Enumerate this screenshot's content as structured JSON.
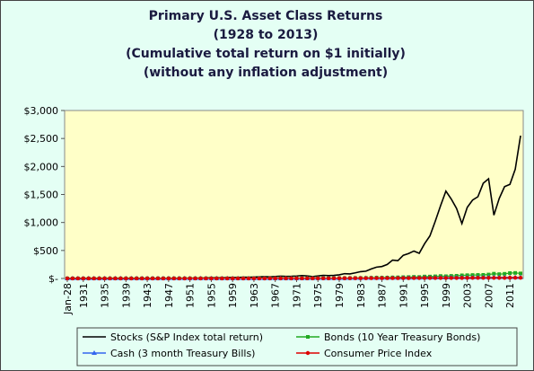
{
  "chart_data": {
    "type": "line",
    "title": [
      "Primary U.S. Asset Class Returns",
      "(1928 to 2013)",
      "(Cumulative total return on $1 initially)",
      "(without any inflation adjustment)"
    ],
    "categories": [
      "Jan-28",
      null,
      null,
      "1931",
      null,
      null,
      null,
      "1935",
      null,
      null,
      null,
      "1939",
      null,
      null,
      null,
      "1943",
      null,
      null,
      null,
      "1947",
      null,
      null,
      null,
      "1951",
      null,
      null,
      null,
      "1955",
      null,
      null,
      null,
      "1959",
      null,
      null,
      null,
      "1963",
      null,
      null,
      null,
      "1967",
      null,
      null,
      null,
      "1971",
      null,
      null,
      null,
      "1975",
      null,
      null,
      null,
      "1979",
      null,
      null,
      null,
      "1983",
      null,
      null,
      null,
      "1987",
      null,
      null,
      null,
      "1991",
      null,
      null,
      null,
      "1995",
      null,
      null,
      null,
      "1999",
      null,
      null,
      null,
      "2003",
      null,
      null,
      null,
      "2007",
      null,
      null,
      null,
      "2011",
      null,
      null
    ],
    "series": [
      {
        "name": "Stocks (S&P Index total return)",
        "color": "#000000",
        "marker": "none",
        "values": [
          1.4,
          1.3,
          1.0,
          0.6,
          0.5,
          0.8,
          0.8,
          1.1,
          1.5,
          1.0,
          1.3,
          1.2,
          1.1,
          1.0,
          1.2,
          1.5,
          1.8,
          2.5,
          2.3,
          2.4,
          2.5,
          3,
          4,
          5,
          6,
          6,
          9,
          11,
          12,
          11,
          16,
          18,
          18,
          23,
          21,
          25,
          29,
          33,
          29,
          36,
          41,
          37,
          39,
          44,
          52,
          45,
          33,
          45,
          56,
          52,
          55,
          65,
          86,
          82,
          100,
          122,
          130,
          171,
          203,
          214,
          250,
          328,
          318,
          414,
          445,
          490,
          450,
          620,
          760,
          1020,
          1300,
          1560,
          1420,
          1250,
          980,
          1270,
          1400,
          1460,
          1700,
          1780,
          1130,
          1430,
          1640,
          1680,
          1950,
          2550
        ]
      },
      {
        "name": "Bonds (10 Year Treasury Bonds)",
        "color": "#22aa22",
        "marker": "square",
        "values": [
          1.0,
          1.0,
          1.1,
          1.1,
          1.2,
          1.2,
          1.4,
          1.5,
          1.6,
          1.6,
          1.7,
          1.8,
          1.9,
          1.9,
          2.0,
          2.0,
          2.1,
          2.1,
          2.1,
          2.1,
          2.2,
          2.3,
          2.3,
          2.3,
          2.3,
          2.4,
          2.5,
          2.4,
          2.3,
          2.5,
          2.4,
          2.4,
          2.8,
          2.8,
          3.0,
          3.0,
          3.1,
          3.1,
          3.2,
          3.2,
          3.3,
          3.1,
          3.6,
          4.0,
          4.1,
          4.3,
          4.4,
          4.6,
          5.4,
          5.5,
          5.4,
          5.5,
          5.4,
          5.6,
          7.9,
          8.2,
          9.5,
          12.0,
          14.9,
          14.5,
          15.7,
          18.6,
          20.0,
          23.5,
          25.2,
          29.0,
          26.4,
          34.8,
          34.3,
          38.3,
          43.5,
          40.0,
          46.0,
          48.5,
          56.1,
          58.6,
          61.4,
          63.2,
          64.3,
          70.6,
          85.0,
          76.8,
          83.1,
          96.3,
          99.1,
          90.0
        ]
      },
      {
        "name": "Cash (3 month Treasury Bills)",
        "color": "#3366ee",
        "marker": "triangle",
        "values": [
          1.0,
          1.1,
          1.1,
          1.1,
          1.1,
          1.1,
          1.1,
          1.1,
          1.1,
          1.1,
          1.1,
          1.1,
          1.1,
          1.1,
          1.1,
          1.1,
          1.2,
          1.2,
          1.2,
          1.2,
          1.2,
          1.2,
          1.2,
          1.3,
          1.3,
          1.3,
          1.3,
          1.3,
          1.4,
          1.4,
          1.5,
          1.5,
          1.6,
          1.6,
          1.7,
          1.7,
          1.8,
          1.9,
          2.0,
          2.0,
          2.1,
          2.3,
          2.4,
          2.5,
          2.6,
          2.8,
          3.1,
          3.3,
          3.5,
          3.6,
          3.9,
          4.3,
          4.8,
          5.5,
          6.1,
          6.7,
          7.3,
          7.8,
          8.3,
          8.7,
          9.3,
          10.1,
          10.9,
          11.5,
          11.9,
          12.3,
          12.8,
          13.5,
          14.2,
          15.0,
          15.7,
          16.5,
          17.5,
          18.1,
          18.4,
          18.6,
          18.9,
          19.5,
          20.4,
          21.4,
          21.7,
          21.7,
          21.7,
          21.7,
          21.8,
          21.8
        ]
      },
      {
        "name": "Consumer Price Index",
        "color": "#dd0000",
        "marker": "circle",
        "values": [
          1.0,
          1.0,
          0.9,
          0.8,
          0.7,
          0.7,
          0.7,
          0.8,
          0.8,
          0.8,
          0.8,
          0.8,
          0.8,
          0.8,
          0.9,
          1.0,
          1.0,
          1.0,
          1.1,
          1.2,
          1.3,
          1.3,
          1.3,
          1.4,
          1.5,
          1.5,
          1.5,
          1.5,
          1.6,
          1.6,
          1.6,
          1.7,
          1.7,
          1.7,
          1.7,
          1.8,
          1.8,
          1.8,
          1.9,
          1.9,
          2.0,
          2.1,
          2.2,
          2.3,
          2.4,
          2.5,
          2.8,
          3.1,
          3.2,
          3.4,
          3.7,
          4.1,
          4.7,
          5.1,
          5.4,
          5.6,
          5.8,
          6.0,
          6.1,
          6.4,
          6.6,
          6.9,
          7.3,
          7.6,
          7.8,
          8.0,
          8.2,
          8.4,
          8.7,
          8.9,
          9.0,
          9.2,
          9.5,
          9.7,
          9.9,
          10.1,
          10.4,
          10.8,
          11.1,
          11.4,
          11.4,
          11.7,
          11.8,
          12.2,
          12.5,
          12.7
        ]
      }
    ],
    "ylim": [
      0,
      3000
    ],
    "yticks": [
      {
        "value": 0,
        "label": "$-"
      },
      {
        "value": 500,
        "label": "$500"
      },
      {
        "value": 1000,
        "label": "$1,000"
      },
      {
        "value": 1500,
        "label": "$1,500"
      },
      {
        "value": 2000,
        "label": "$2,000"
      },
      {
        "value": 2500,
        "label": "$2,500"
      },
      {
        "value": 3000,
        "label": "$3,000"
      }
    ],
    "grid": false,
    "legend": "bottom"
  }
}
